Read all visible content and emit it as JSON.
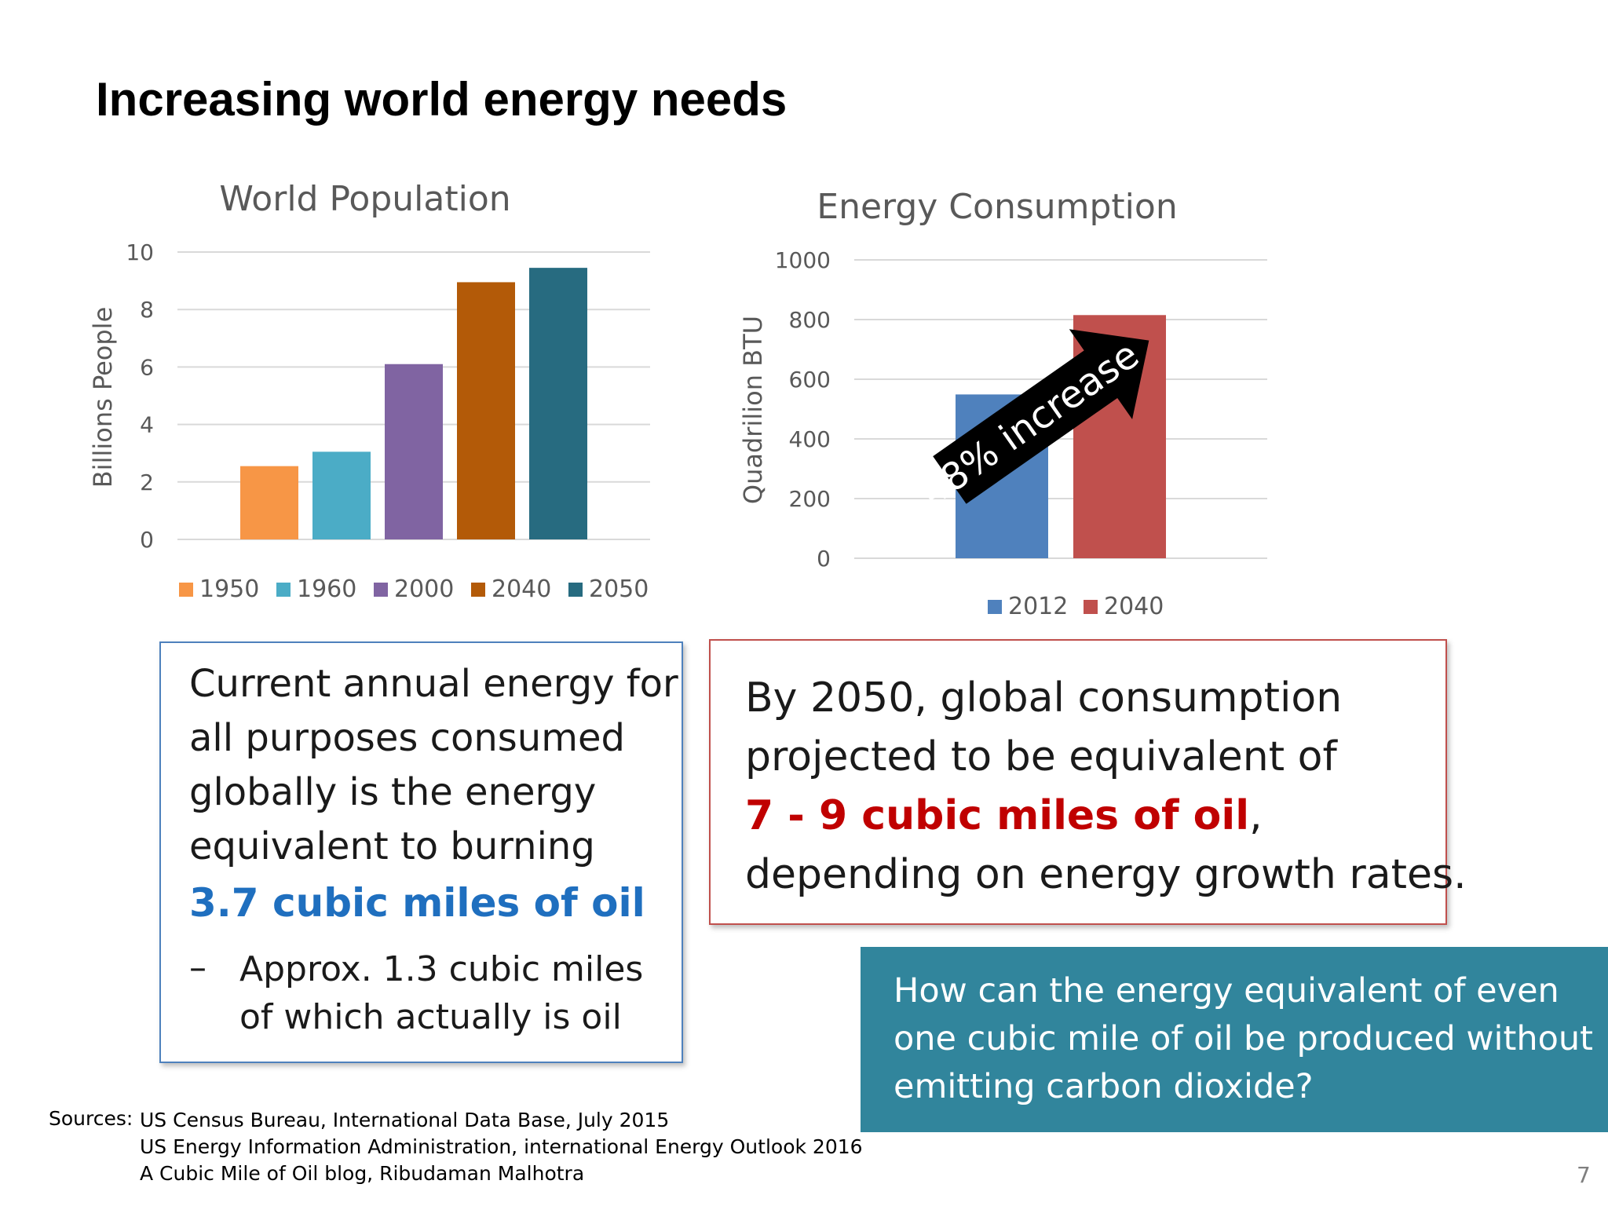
{
  "slide": {
    "title": "Increasing world energy needs",
    "page_number": "7"
  },
  "chart_data": [
    {
      "type": "bar",
      "title": "World Population",
      "ylabel": "Billions People",
      "ylim": [
        0,
        10
      ],
      "yticks": [
        "0",
        "2",
        "4",
        "6",
        "8",
        "10"
      ],
      "grid": true,
      "legend_position": "bottom",
      "series": [
        {
          "name": "1950",
          "value": 2.55,
          "color": "#f79646"
        },
        {
          "name": "1960",
          "value": 3.05,
          "color": "#4bacc6"
        },
        {
          "name": "2000",
          "value": 6.1,
          "color": "#8064a2"
        },
        {
          "name": "2040",
          "value": 8.95,
          "color": "#b35a08"
        },
        {
          "name": "2050",
          "value": 9.45,
          "color": "#276b80"
        }
      ]
    },
    {
      "type": "bar",
      "title": "Energy Consumption",
      "ylabel": "Quadrilion BTU",
      "ylim": [
        0,
        1000
      ],
      "yticks": [
        "0",
        "200",
        "400",
        "600",
        "800",
        "1000"
      ],
      "grid": true,
      "legend_position": "bottom",
      "series": [
        {
          "name": "2012",
          "value": 549,
          "color": "#4f81bd"
        },
        {
          "name": "2040",
          "value": 815,
          "color": "#c0504d"
        }
      ],
      "annotation": "48% increase"
    }
  ],
  "box_left": {
    "lines": [
      "Current annual energy for",
      "all purposes consumed",
      "globally is the energy",
      "equivalent to burning"
    ],
    "highlight": "3.7 cubic miles of oil",
    "dash": "–",
    "sub_lines": [
      "Approx. 1.3 cubic miles",
      "of which actually is oil"
    ],
    "border_color": "#4e81bd",
    "highlight_color": "#1f6fbf"
  },
  "box_right": {
    "line1": "By 2050, global consumption",
    "line2": "projected to be equivalent of",
    "highlight": "7 - 9 cubic miles of oil",
    "after_highlight": ",",
    "line4": "depending on energy growth rates.",
    "border_color": "#c0504d",
    "highlight_color": "#c00000"
  },
  "question": {
    "lines": [
      "How can the energy equivalent of even",
      "one cubic mile of oil be produced without",
      "emitting carbon dioxide?"
    ],
    "background": "#31859c"
  },
  "sources": {
    "label": "Sources:",
    "items": [
      "US Census Bureau, International Data Base, July 2015",
      "US Energy Information Administration, international Energy Outlook 2016",
      "A Cubic Mile of Oil blog, Ribudaman Malhotra"
    ]
  }
}
